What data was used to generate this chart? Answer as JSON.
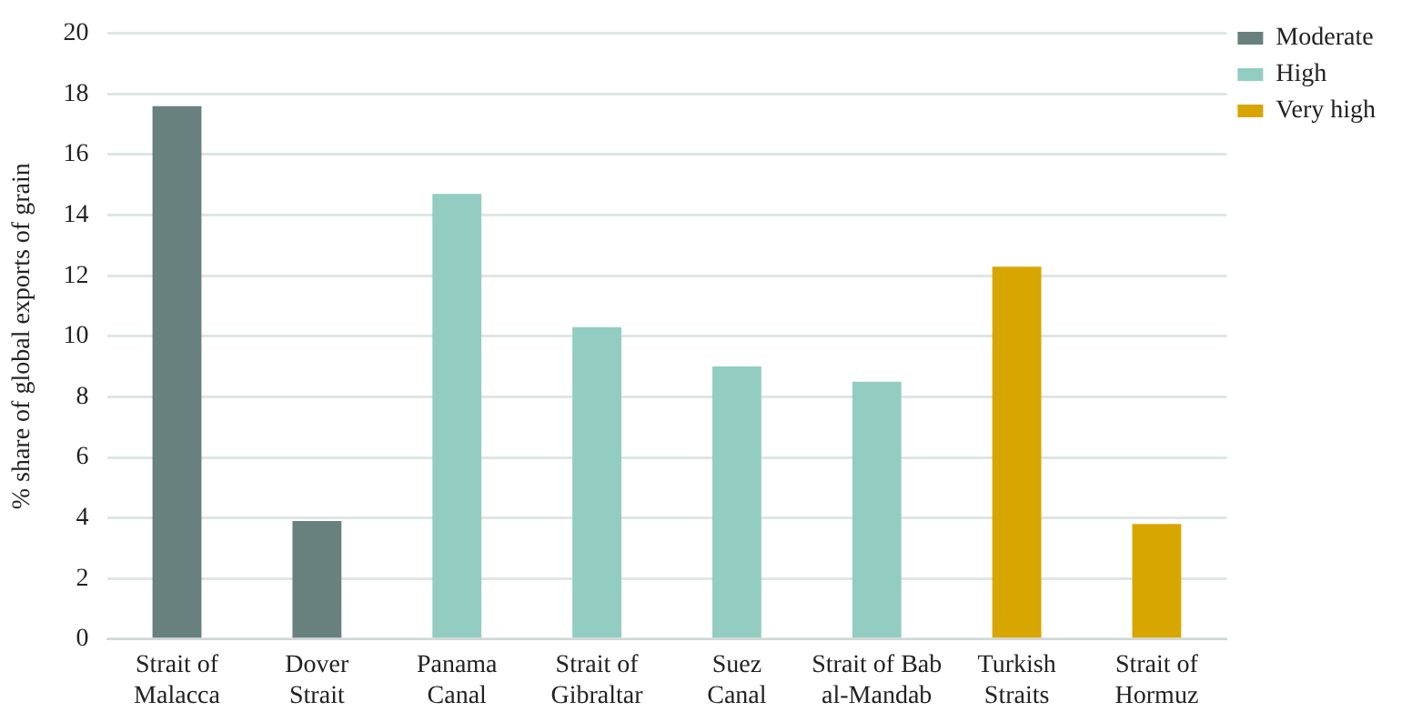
{
  "chart_data": {
    "type": "bar",
    "ylabel": "% share of global exports of grain",
    "categories": [
      "Strait of\nMalacca",
      "Dover\nStrait",
      "Panama\nCanal",
      "Strait of\nGibraltar",
      "Suez\nCanal",
      "Strait of Bab\nal-Mandab",
      "Turkish\nStraits",
      "Strait of\nHormuz"
    ],
    "series": [
      {
        "name": "Moderate",
        "color": "#68807e",
        "values": [
          17.6,
          3.9,
          null,
          null,
          null,
          null,
          null,
          null
        ]
      },
      {
        "name": "High",
        "color": "#93cdc1",
        "values": [
          null,
          null,
          14.7,
          10.3,
          9.0,
          8.5,
          null,
          null
        ]
      },
      {
        "name": "Very high",
        "color": "#d8a600",
        "values": [
          null,
          null,
          null,
          null,
          null,
          null,
          12.3,
          3.8
        ]
      }
    ],
    "ylim": [
      0,
      20
    ],
    "yticks": [
      0,
      2,
      4,
      6,
      8,
      10,
      12,
      14,
      16,
      18,
      20
    ],
    "grid": "y",
    "legend": "top right"
  }
}
